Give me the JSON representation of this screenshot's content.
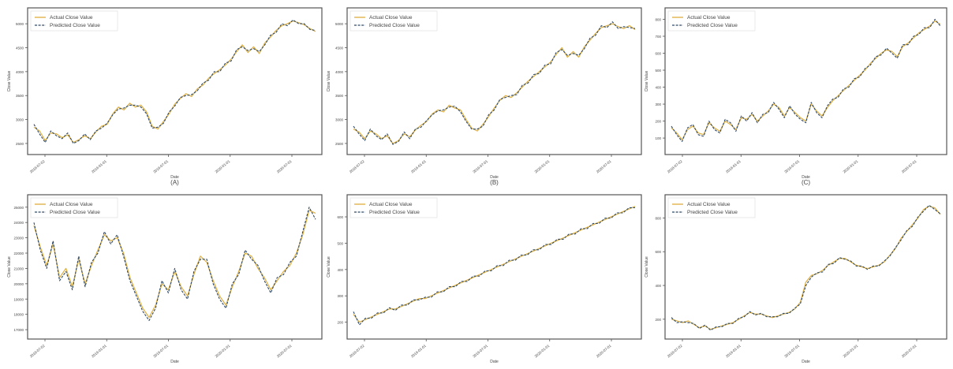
{
  "figure": {
    "legend": {
      "actual": "Actual Close Value",
      "predicted": "Predicted Close Value"
    },
    "colors": {
      "actual": "#e0b44a",
      "predicted": "#2f4a66",
      "frame": "#555555",
      "text": "#444444"
    }
  },
  "chart_data": [
    {
      "type": "line",
      "panel_label": "(A)",
      "xlabel": "Date",
      "ylabel": "Close Value",
      "legend_position": "top-left",
      "grid": false,
      "xticks": [
        "2018-07-02",
        "2019-01-01",
        "2019-07-01",
        "2020-01-01",
        "2020-07-01"
      ],
      "yticks": [
        "2500",
        "3000",
        "3500",
        "4000",
        "4500",
        "5000"
      ],
      "ylim": [
        2400,
        5200
      ],
      "series": [
        {
          "name": "Actual Close Value",
          "values": [
            2840,
            2760,
            2560,
            2720,
            2700,
            2620,
            2680,
            2520,
            2580,
            2660,
            2600,
            2740,
            2860,
            2900,
            3120,
            3260,
            3200,
            3340,
            3260,
            3300,
            3160,
            2860,
            2800,
            2960,
            3120,
            3320,
            3440,
            3540,
            3480,
            3640,
            3720,
            3860,
            3960,
            4040,
            4140,
            4260,
            4420,
            4560,
            4400,
            4520,
            4380,
            4600,
            4720,
            4860,
            4960,
            5000,
            5060,
            5020,
            4980,
            4900,
            4840
          ]
        },
        {
          "name": "Predicted Close Value",
          "values": [
            2900,
            2700,
            2520,
            2760,
            2660,
            2600,
            2720,
            2500,
            2560,
            2700,
            2580,
            2760,
            2820,
            2920,
            3100,
            3220,
            3240,
            3300,
            3300,
            3260,
            3120,
            2820,
            2840,
            2920,
            3160,
            3280,
            3460,
            3500,
            3520,
            3600,
            3760,
            3820,
            4000,
            4000,
            4180,
            4220,
            4460,
            4520,
            4440,
            4480,
            4420,
            4560,
            4760,
            4820,
            5000,
            4960,
            5080,
            5000,
            5000,
            4880,
            4860
          ]
        }
      ]
    },
    {
      "type": "line",
      "panel_label": "(B)",
      "xlabel": "Date",
      "ylabel": "Close Value",
      "legend_position": "top-left",
      "grid": false,
      "xticks": [
        "2018-07-02",
        "2019-01-01",
        "2019-07-01",
        "2020-01-01",
        "2020-07-01"
      ],
      "yticks": [
        "2500",
        "3000",
        "3500",
        "4000",
        "4500",
        "5000"
      ],
      "ylim": [
        2400,
        5200
      ],
      "series": [
        {
          "name": "Actual Close Value",
          "values": [
            2800,
            2740,
            2600,
            2760,
            2700,
            2600,
            2660,
            2500,
            2560,
            2700,
            2640,
            2780,
            2880,
            2960,
            3120,
            3200,
            3160,
            3300,
            3240,
            3200,
            3000,
            2820,
            2760,
            2900,
            3060,
            3240,
            3400,
            3500,
            3460,
            3560,
            3680,
            3800,
            3900,
            4000,
            4100,
            4200,
            4360,
            4500,
            4300,
            4420,
            4300,
            4520,
            4660,
            4800,
            4920,
            4960,
            5000,
            4940,
            4900,
            4960,
            4880
          ]
        },
        {
          "name": "Predicted Close Value",
          "values": [
            2860,
            2700,
            2560,
            2800,
            2660,
            2580,
            2700,
            2480,
            2540,
            2740,
            2600,
            2800,
            2840,
            2980,
            3100,
            3180,
            3200,
            3260,
            3280,
            3160,
            2960,
            2800,
            2800,
            2860,
            3100,
            3200,
            3420,
            3460,
            3500,
            3520,
            3720,
            3760,
            3940,
            3960,
            4140,
            4160,
            4400,
            4460,
            4340,
            4380,
            4340,
            4480,
            4700,
            4760,
            4960,
            4920,
            5040,
            4900,
            4940,
            4920,
            4900
          ]
        }
      ]
    },
    {
      "type": "line",
      "panel_label": "(C)",
      "xlabel": "Date",
      "ylabel": "Close Value",
      "legend_position": "top-left",
      "grid": false,
      "xticks": [
        "2018-07-02",
        "2019-01-01",
        "2019-07-01",
        "2020-01-01",
        "2020-07-01"
      ],
      "yticks": [
        "100",
        "200",
        "300",
        "400",
        "500",
        "600",
        "700",
        "800"
      ],
      "ylim": [
        40,
        830
      ],
      "series": [
        {
          "name": "Actual Close Value",
          "values": [
            160,
            130,
            90,
            150,
            170,
            130,
            120,
            190,
            160,
            140,
            200,
            180,
            150,
            220,
            210,
            240,
            200,
            230,
            260,
            300,
            280,
            230,
            280,
            250,
            220,
            200,
            300,
            260,
            230,
            280,
            320,
            350,
            380,
            410,
            440,
            470,
            500,
            540,
            570,
            600,
            620,
            610,
            580,
            640,
            660,
            690,
            720,
            740,
            760,
            790,
            770
          ]
        },
        {
          "name": "Predicted Close Value",
          "values": [
            170,
            120,
            80,
            160,
            180,
            120,
            110,
            200,
            150,
            130,
            210,
            190,
            140,
            230,
            200,
            250,
            190,
            240,
            250,
            310,
            270,
            220,
            290,
            240,
            210,
            190,
            310,
            250,
            220,
            290,
            330,
            340,
            390,
            400,
            450,
            460,
            510,
            530,
            580,
            590,
            630,
            600,
            570,
            650,
            650,
            700,
            710,
            750,
            750,
            800,
            760
          ]
        }
      ]
    },
    {
      "type": "line",
      "panel_label": "",
      "xlabel": "Date",
      "ylabel": "Close Value",
      "legend_position": "top-left",
      "grid": false,
      "xticks": [
        "2018-07-02",
        "2019-01-01",
        "2019-07-01",
        "2020-01-01",
        "2020-07-01"
      ],
      "yticks": [
        "17000",
        "18000",
        "19000",
        "20000",
        "21000",
        "22000",
        "23000",
        "24000",
        "25000"
      ],
      "ylim": [
        16800,
        25400
      ],
      "series": [
        {
          "name": "Actual Close Value",
          "values": [
            23800,
            22400,
            21200,
            22600,
            20400,
            21000,
            19800,
            21600,
            20000,
            21200,
            22200,
            23200,
            22800,
            23000,
            22000,
            20400,
            19400,
            18400,
            17800,
            18600,
            20000,
            19600,
            20800,
            19800,
            19200,
            20600,
            21800,
            21400,
            20200,
            19200,
            18600,
            19800,
            20800,
            22000,
            21800,
            21000,
            20400,
            19600,
            20200,
            20800,
            21200,
            22000,
            23200,
            24800,
            24600
          ]
        },
        {
          "name": "Predicted Close Value",
          "values": [
            24000,
            22200,
            21000,
            22800,
            20200,
            20800,
            19600,
            21800,
            19800,
            21400,
            22000,
            23400,
            22600,
            23200,
            21800,
            20200,
            19200,
            18200,
            17600,
            18400,
            20200,
            19400,
            21000,
            19600,
            19000,
            20800,
            21600,
            21600,
            20000,
            19000,
            18400,
            20000,
            20600,
            22200,
            21600,
            21200,
            20200,
            19400,
            20400,
            20600,
            21400,
            21800,
            23400,
            25000,
            24200
          ]
        }
      ]
    },
    {
      "type": "line",
      "panel_label": "",
      "xlabel": "Date",
      "ylabel": "Close Value",
      "legend_position": "top-left",
      "grid": false,
      "xticks": [
        "2018-07-02",
        "2019-01-01",
        "2019-07-01",
        "2020-01-01",
        "2020-07-01"
      ],
      "yticks": [
        "200",
        "300",
        "400",
        "500",
        "600"
      ],
      "ylim": [
        160,
        660
      ],
      "series": [
        {
          "name": "Actual Close Value",
          "values": [
            230,
            200,
            210,
            220,
            230,
            240,
            250,
            250,
            260,
            270,
            280,
            290,
            290,
            300,
            310,
            320,
            330,
            340,
            350,
            360,
            370,
            380,
            390,
            400,
            410,
            420,
            430,
            440,
            450,
            460,
            470,
            480,
            490,
            500,
            510,
            520,
            530,
            540,
            550,
            560,
            570,
            580,
            590,
            600,
            610,
            620,
            630,
            640
          ]
        },
        {
          "name": "Predicted Close Value",
          "values": [
            240,
            190,
            215,
            215,
            235,
            235,
            255,
            245,
            265,
            265,
            285,
            285,
            295,
            295,
            315,
            315,
            335,
            335,
            355,
            355,
            375,
            375,
            395,
            395,
            415,
            415,
            435,
            435,
            455,
            455,
            475,
            475,
            495,
            495,
            515,
            515,
            535,
            535,
            555,
            555,
            575,
            575,
            595,
            595,
            615,
            615,
            635,
            635
          ]
        }
      ]
    },
    {
      "type": "line",
      "panel_label": "",
      "xlabel": "Date",
      "ylabel": "Close Value",
      "legend_position": "top-left",
      "grid": false,
      "xticks": [
        "2018-07-02",
        "2019-01-01",
        "2019-07-01",
        "2020-01-01",
        "2020-07-01"
      ],
      "yticks": [
        "200",
        "400",
        "600",
        "800"
      ],
      "ylim": [
        120,
        900
      ],
      "series": [
        {
          "name": "Actual Close Value",
          "values": [
            200,
            190,
            180,
            190,
            170,
            150,
            160,
            140,
            150,
            160,
            170,
            180,
            200,
            220,
            240,
            230,
            230,
            220,
            210,
            220,
            230,
            240,
            260,
            300,
            420,
            460,
            470,
            490,
            520,
            540,
            560,
            560,
            540,
            520,
            510,
            500,
            510,
            520,
            540,
            580,
            620,
            680,
            720,
            760,
            800,
            850,
            870,
            860,
            820
          ]
        },
        {
          "name": "Predicted Close Value",
          "values": [
            210,
            180,
            185,
            180,
            175,
            145,
            165,
            135,
            155,
            155,
            175,
            175,
            205,
            215,
            245,
            225,
            235,
            215,
            215,
            215,
            235,
            235,
            265,
            290,
            400,
            450,
            475,
            480,
            525,
            530,
            565,
            555,
            545,
            515,
            515,
            495,
            515,
            515,
            545,
            575,
            625,
            670,
            725,
            750,
            805,
            840,
            875,
            850,
            825
          ]
        }
      ]
    }
  ]
}
